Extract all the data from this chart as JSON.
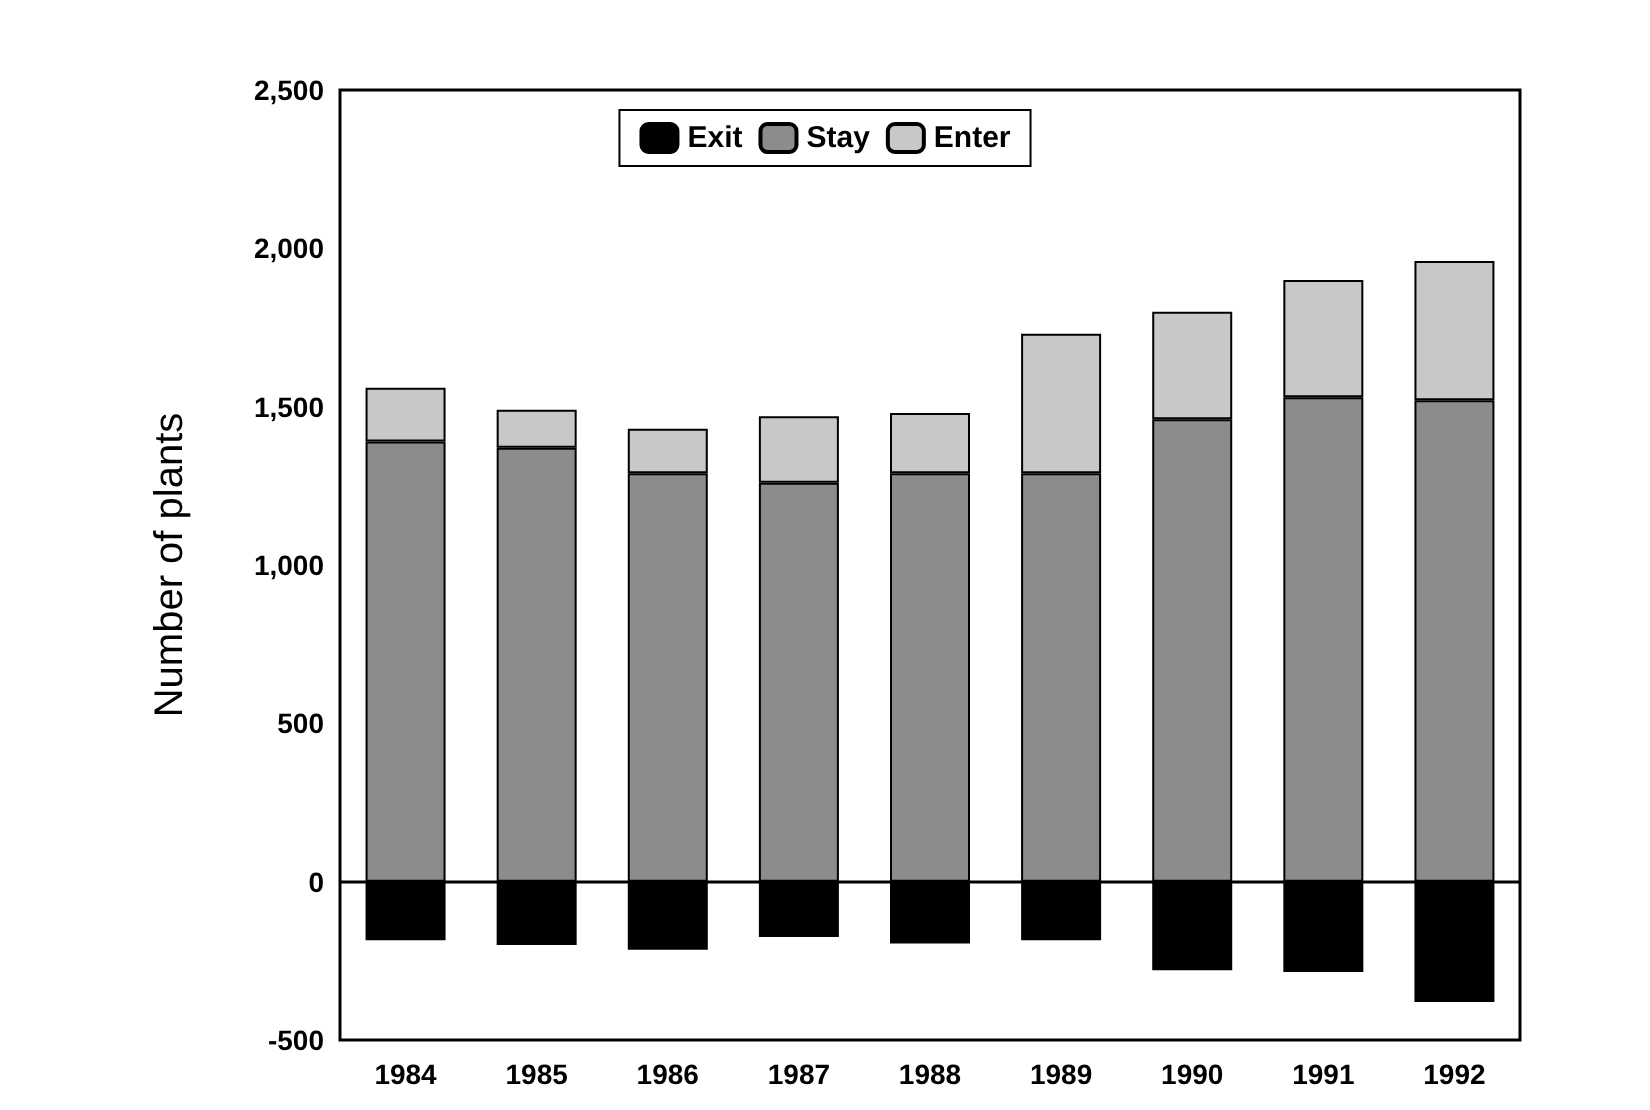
{
  "chart_data": {
    "type": "bar",
    "stacked": true,
    "ylabel": "Number of plants",
    "categories": [
      "1984",
      "1985",
      "1986",
      "1987",
      "1988",
      "1989",
      "1990",
      "1991",
      "1992"
    ],
    "series": [
      {
        "name": "Exit",
        "color": "#000000",
        "values": [
          -185,
          -200,
          -215,
          -175,
          -195,
          -185,
          -280,
          -285,
          -380
        ]
      },
      {
        "name": "Stay",
        "color": "#8c8c8c",
        "values": [
          1390,
          1370,
          1290,
          1260,
          1290,
          1290,
          1460,
          1530,
          1520
        ]
      },
      {
        "name": "Enter",
        "color": "#c8c8c8",
        "values": [
          170,
          120,
          140,
          210,
          190,
          440,
          340,
          370,
          440
        ]
      }
    ],
    "ylim": [
      -500,
      2500
    ],
    "yticks": [
      {
        "value": -500,
        "label": "-500"
      },
      {
        "value": 0,
        "label": "0"
      },
      {
        "value": 500,
        "label": "500"
      },
      {
        "value": 1000,
        "label": "1,000"
      },
      {
        "value": 1500,
        "label": "1,500"
      },
      {
        "value": 2000,
        "label": "2,000"
      },
      {
        "value": 2500,
        "label": "2,500"
      }
    ],
    "legend": "top"
  }
}
